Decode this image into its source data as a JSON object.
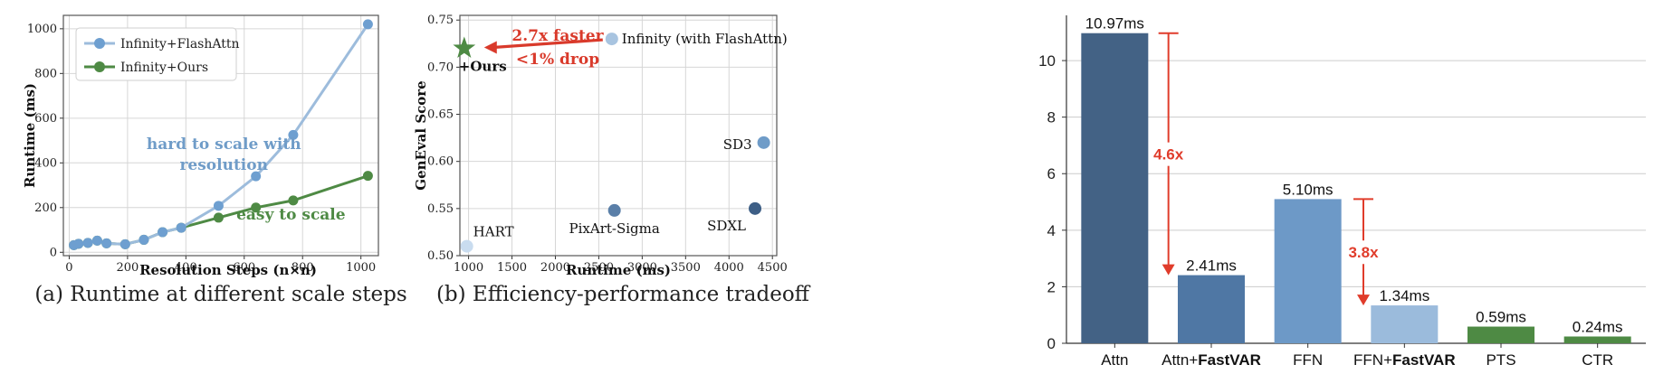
{
  "chart_data": [
    {
      "type": "line",
      "caption": "(a) Runtime at different scale steps",
      "xlabel": "Resolution Steps (n×n)",
      "ylabel": "Runtime (ms)",
      "xlim": [
        -20,
        1060
      ],
      "ylim": [
        -15,
        1060
      ],
      "xticks": [
        0,
        200,
        400,
        600,
        800,
        1000
      ],
      "yticks": [
        0,
        200,
        400,
        600,
        800,
        1000
      ],
      "grid": true,
      "legend_position": "top-left",
      "series": [
        {
          "name": "Infinity+FlashAttn",
          "color": "#9dbcdc",
          "marker_color": "#6e9fd0",
          "x": [
            16,
            32,
            64,
            96,
            128,
            192,
            256,
            320,
            384,
            512,
            640,
            768,
            1024
          ],
          "y": [
            32,
            38,
            42,
            52,
            40,
            36,
            56,
            90,
            110,
            208,
            340,
            525,
            1020
          ]
        },
        {
          "name": "Infinity+Ours",
          "color": "#4e8a44",
          "marker_color": "#4e8a44",
          "x": [
            16,
            32,
            64,
            96,
            128,
            192,
            256,
            320,
            384,
            512,
            640,
            768,
            1024
          ],
          "y": [
            32,
            38,
            42,
            52,
            40,
            36,
            56,
            90,
            110,
            155,
            200,
            232,
            342
          ]
        }
      ],
      "annotations": [
        {
          "text": "hard to scale with",
          "color": "#6f9cc8"
        },
        {
          "text": "resolution",
          "color": "#6f9cc8"
        },
        {
          "text": "easy to scale",
          "color": "#4e8a44"
        }
      ]
    },
    {
      "type": "scatter",
      "caption": "(b) Efficiency-performance tradeoff",
      "xlabel": "Runtime (ms)",
      "ylabel": "GenEval Score",
      "xlim": [
        900,
        4550
      ],
      "ylim": [
        0.5,
        0.755
      ],
      "xticks": [
        1000,
        1500,
        2000,
        2500,
        3000,
        3500,
        4000,
        4500
      ],
      "yticks": [
        0.5,
        0.55,
        0.6,
        0.65,
        0.7,
        0.75
      ],
      "grid": true,
      "points": [
        {
          "label": "Infinity (with FlashAttn)",
          "x": 2650,
          "y": 0.73,
          "color": "#a8c4e0",
          "label_side": "right"
        },
        {
          "label": "+Ours",
          "x": 950,
          "y": 0.72,
          "color": "#4e8a44",
          "marker": "star",
          "label_side": "below"
        },
        {
          "label": "SD3",
          "x": 4400,
          "y": 0.62,
          "color": "#6f9cc8",
          "label_side": "left"
        },
        {
          "label": "HART",
          "x": 980,
          "y": 0.51,
          "color": "#c9dcef",
          "label_side": "above-right"
        },
        {
          "label": "PixArt-Sigma",
          "x": 2680,
          "y": 0.548,
          "color": "#5a7fa8",
          "label_side": "below"
        },
        {
          "label": "SDXL",
          "x": 4300,
          "y": 0.55,
          "color": "#3e5f86",
          "label_side": "below-left"
        }
      ],
      "annotations": [
        {
          "text": "2.7x faster",
          "color": "#d93a2b"
        },
        {
          "text": "<1% drop",
          "color": "#d93a2b"
        }
      ]
    },
    {
      "type": "bar",
      "ylim": [
        0,
        11.6
      ],
      "yticks": [
        0,
        2,
        4,
        6,
        8,
        10
      ],
      "grid": true,
      "categories": [
        {
          "prefix": "Attn",
          "bold": ""
        },
        {
          "prefix": "Attn+",
          "bold": "FastVAR"
        },
        {
          "prefix": "FFN",
          "bold": ""
        },
        {
          "prefix": "FFN+",
          "bold": "FastVAR"
        },
        {
          "prefix": "PTS",
          "bold": ""
        },
        {
          "prefix": "CTR",
          "bold": ""
        }
      ],
      "values": [
        10.97,
        2.41,
        5.1,
        1.34,
        0.59,
        0.24
      ],
      "value_labels": [
        "10.97ms",
        "2.41ms",
        "5.10ms",
        "1.34ms",
        "0.59ms",
        "0.24ms"
      ],
      "colors": [
        "#436285",
        "#4f77a4",
        "#6d99c7",
        "#9bbbdc",
        "#4e8a44",
        "#4e8a44"
      ],
      "speedups": [
        {
          "text": "4.6x",
          "from": 10.97,
          "to": 2.41,
          "color": "#e03c2b"
        },
        {
          "text": "3.8x",
          "from": 5.1,
          "to": 1.34,
          "color": "#e03c2b"
        }
      ]
    }
  ]
}
